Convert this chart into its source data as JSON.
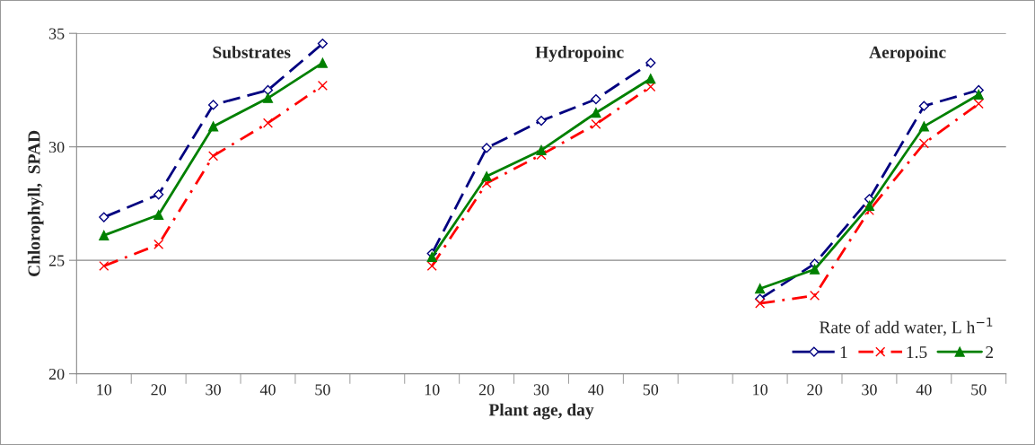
{
  "chart_data": {
    "type": "line",
    "xlabel": "Plant age, day",
    "ylabel": "Chlorophyll,  SPAD",
    "categories": [
      "10",
      "20",
      "30",
      "40",
      "50",
      null,
      "10",
      "20",
      "30",
      "40",
      "50",
      null,
      "10",
      "20",
      "30",
      "40",
      "50"
    ],
    "ylim": [
      20,
      35
    ],
    "yticks": [
      20,
      25,
      30,
      35
    ],
    "grid": "y",
    "legend": "bottom right",
    "legend_title": "Rate of add water, L h$^{−1}$",
    "annotations": [
      "Substrates",
      "Hydropoinc",
      "Aeropoinc"
    ],
    "series": [
      {
        "name": "1",
        "color": "#000080",
        "marker": "diamond",
        "line_style": "dashed",
        "values": [
          26.9,
          27.9,
          31.85,
          32.5,
          34.55,
          null,
          25.3,
          29.95,
          31.15,
          32.1,
          33.7,
          null,
          23.3,
          24.85,
          27.7,
          31.8,
          32.5
        ]
      },
      {
        "name": "1.5",
        "color": "#ff0000",
        "marker": "cross",
        "line_style": "dashdot",
        "values": [
          24.75,
          25.7,
          29.6,
          31.05,
          32.7,
          null,
          24.75,
          28.4,
          29.65,
          31.0,
          32.65,
          null,
          23.1,
          23.45,
          27.2,
          30.15,
          31.9
        ]
      },
      {
        "name": "2",
        "color": "#008000",
        "marker": "triangle",
        "line_style": "solid",
        "values": [
          26.1,
          27.0,
          30.9,
          32.15,
          33.7,
          null,
          25.15,
          28.7,
          29.85,
          31.5,
          33.0,
          null,
          23.75,
          24.6,
          27.4,
          30.9,
          32.3
        ]
      }
    ]
  }
}
